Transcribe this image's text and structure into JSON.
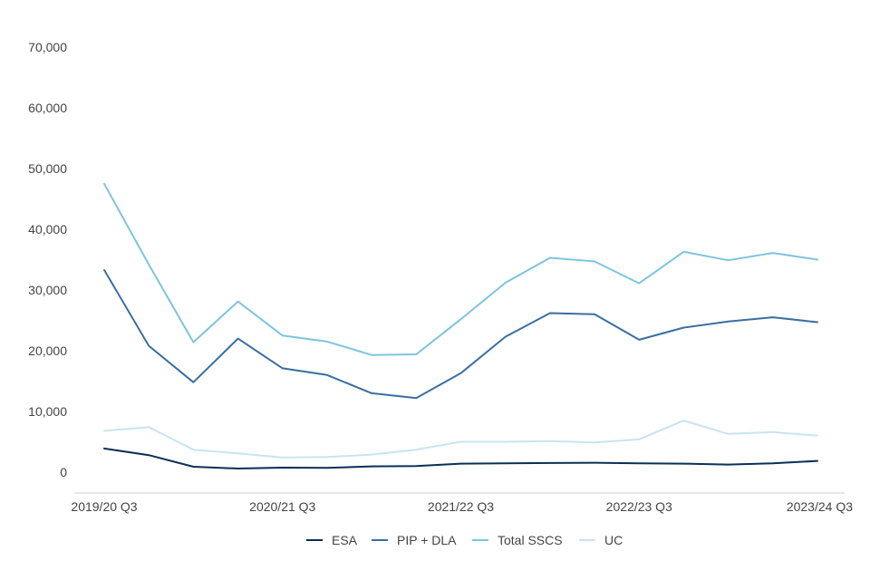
{
  "chart_data": {
    "type": "line",
    "title": "",
    "xlabel": "",
    "ylabel": "",
    "ylim": [
      0,
      70000
    ],
    "yticks": [
      0,
      10000,
      20000,
      30000,
      40000,
      50000,
      60000,
      70000
    ],
    "ytick_labels": [
      "0",
      "10,000",
      "20,000",
      "30,000",
      "40,000",
      "50,000",
      "60,000",
      "70,000"
    ],
    "categories": [
      "2019/20 Q3",
      "2019/20 Q4",
      "2020/21 Q1",
      "2020/21 Q2",
      "2020/21 Q3",
      "2020/21 Q4",
      "2021/22 Q1",
      "2021/22 Q2",
      "2021/22 Q3",
      "2021/22 Q4",
      "2022/23 Q1",
      "2022/23 Q2",
      "2022/23 Q3",
      "2022/23 Q4",
      "2023/24 Q1",
      "2023/24 Q2",
      "2023/24 Q3"
    ],
    "xtick_labels": [
      "2019/20 Q3",
      "2020/21 Q3",
      "2021/22 Q3",
      "2022/23 Q3",
      "2023/24 Q3"
    ],
    "grid": false,
    "legend_position": "bottom",
    "series": [
      {
        "name": "ESA",
        "color": "#0b2f56",
        "values": [
          3900,
          2800,
          900,
          600,
          750,
          700,
          950,
          1000,
          1400,
          1450,
          1500,
          1550,
          1450,
          1400,
          1250,
          1450,
          1850
        ]
      },
      {
        "name": "PIP + DLA",
        "color": "#3a6fa0",
        "values": [
          33300,
          20800,
          14800,
          22000,
          17100,
          16000,
          13000,
          12200,
          16300,
          22300,
          26200,
          26000,
          21800,
          23800,
          24800,
          25500,
          24700
        ]
      },
      {
        "name": "Total SSCS",
        "color": "#7ec4dd",
        "values": [
          47500,
          34200,
          21400,
          28100,
          22500,
          21500,
          19300,
          19400,
          25200,
          31200,
          35300,
          34700,
          31100,
          36300,
          34900,
          36100,
          35000
        ]
      },
      {
        "name": "UC",
        "color": "#c9e4ef",
        "values": [
          6800,
          7400,
          3700,
          3100,
          2400,
          2500,
          2900,
          3700,
          5000,
          5000,
          5100,
          4900,
          5400,
          8500,
          6300,
          6600,
          6000
        ]
      }
    ]
  }
}
